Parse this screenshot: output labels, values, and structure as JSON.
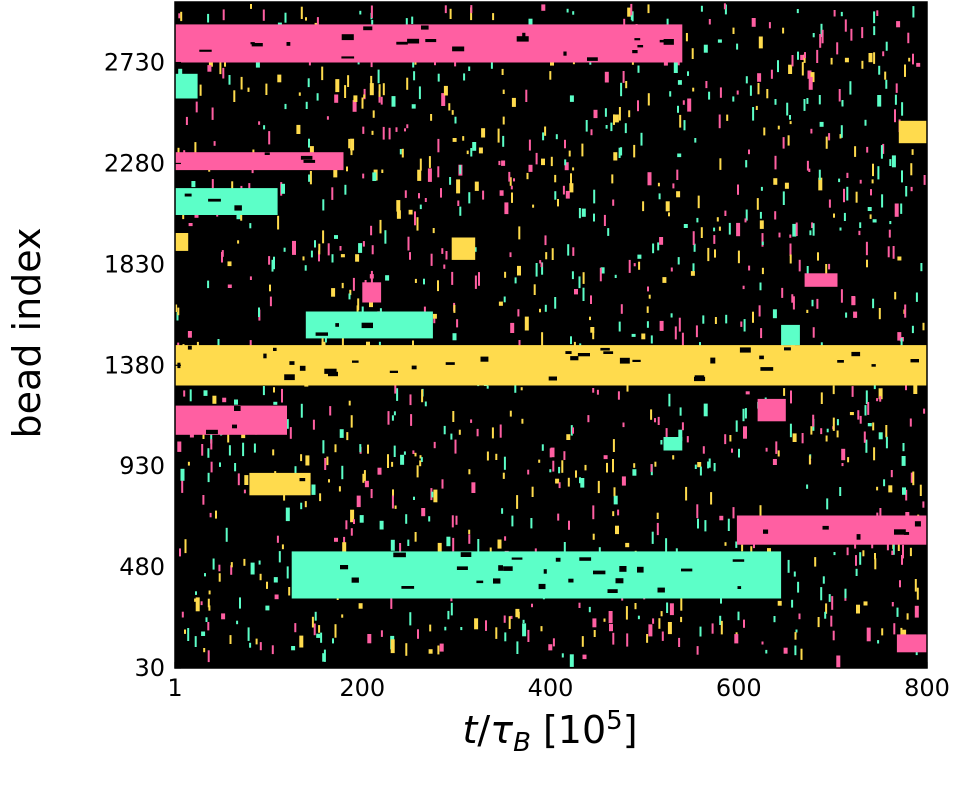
{
  "chart_data": {
    "type": "heatmap",
    "xlabel": "t/τB [10^5]",
    "xlabel_parts": {
      "var": "t",
      "slash": "/",
      "tau": "τ",
      "sub": "B",
      "open": " [10",
      "exp": "5",
      "close": "]"
    },
    "ylabel": "bead index",
    "xlim": [
      1,
      800
    ],
    "ylim": [
      30,
      3000
    ],
    "x_ticks": [
      1,
      200,
      400,
      600,
      800
    ],
    "x_tick_labels": [
      "1",
      "200",
      "400",
      "600",
      "800"
    ],
    "y_ticks": [
      30,
      480,
      930,
      1380,
      1830,
      2280,
      2730
    ],
    "y_tick_labels": [
      "30",
      "480",
      "930",
      "1380",
      "1830",
      "2280",
      "2730"
    ],
    "background": "#000000",
    "colors": {
      "pink": "#ff5fa2",
      "cyan": "#5cffc8",
      "yellow": "#ffdb4d"
    },
    "blocks": [
      {
        "color": "pink",
        "t": [
          1,
          540
        ],
        "bead": [
          2730,
          2900
        ]
      },
      {
        "color": "pink",
        "t": [
          1,
          180
        ],
        "bead": [
          2250,
          2330
        ]
      },
      {
        "color": "cyan",
        "t": [
          1,
          110
        ],
        "bead": [
          2050,
          2170
        ]
      },
      {
        "color": "pink",
        "t": [
          200,
          220
        ],
        "bead": [
          1660,
          1750
        ]
      },
      {
        "color": "cyan",
        "t": [
          140,
          275
        ],
        "bead": [
          1500,
          1620
        ]
      },
      {
        "color": "yellow",
        "t": [
          1,
          800
        ],
        "bead": [
          1290,
          1470
        ]
      },
      {
        "color": "pink",
        "t": [
          1,
          120
        ],
        "bead": [
          1070,
          1200
        ]
      },
      {
        "color": "pink",
        "t": [
          620,
          650
        ],
        "bead": [
          1130,
          1230
        ]
      },
      {
        "color": "yellow",
        "t": [
          80,
          145
        ],
        "bead": [
          800,
          900
        ]
      },
      {
        "color": "pink",
        "t": [
          598,
          800
        ],
        "bead": [
          580,
          710
        ]
      },
      {
        "color": "cyan",
        "t": [
          125,
          645
        ],
        "bead": [
          340,
          550
        ]
      },
      {
        "color": "pink",
        "t": [
          768,
          800
        ],
        "bead": [
          100,
          180
        ]
      },
      {
        "color": "yellow",
        "t": [
          770,
          800
        ],
        "bead": [
          2370,
          2470
        ]
      },
      {
        "color": "pink",
        "t": [
          670,
          705
        ],
        "bead": [
          1730,
          1790
        ]
      },
      {
        "color": "cyan",
        "t": [
          645,
          665
        ],
        "bead": [
          1470,
          1560
        ]
      },
      {
        "color": "cyan",
        "t": [
          520,
          540
        ],
        "bead": [
          1000,
          1060
        ]
      },
      {
        "color": "yellow",
        "t": [
          1,
          15
        ],
        "bead": [
          1890,
          1970
        ]
      },
      {
        "color": "yellow",
        "t": [
          295,
          320
        ],
        "bead": [
          1850,
          1950
        ]
      },
      {
        "color": "cyan",
        "t": [
          1,
          25
        ],
        "bead": [
          2570,
          2680
        ]
      }
    ]
  }
}
